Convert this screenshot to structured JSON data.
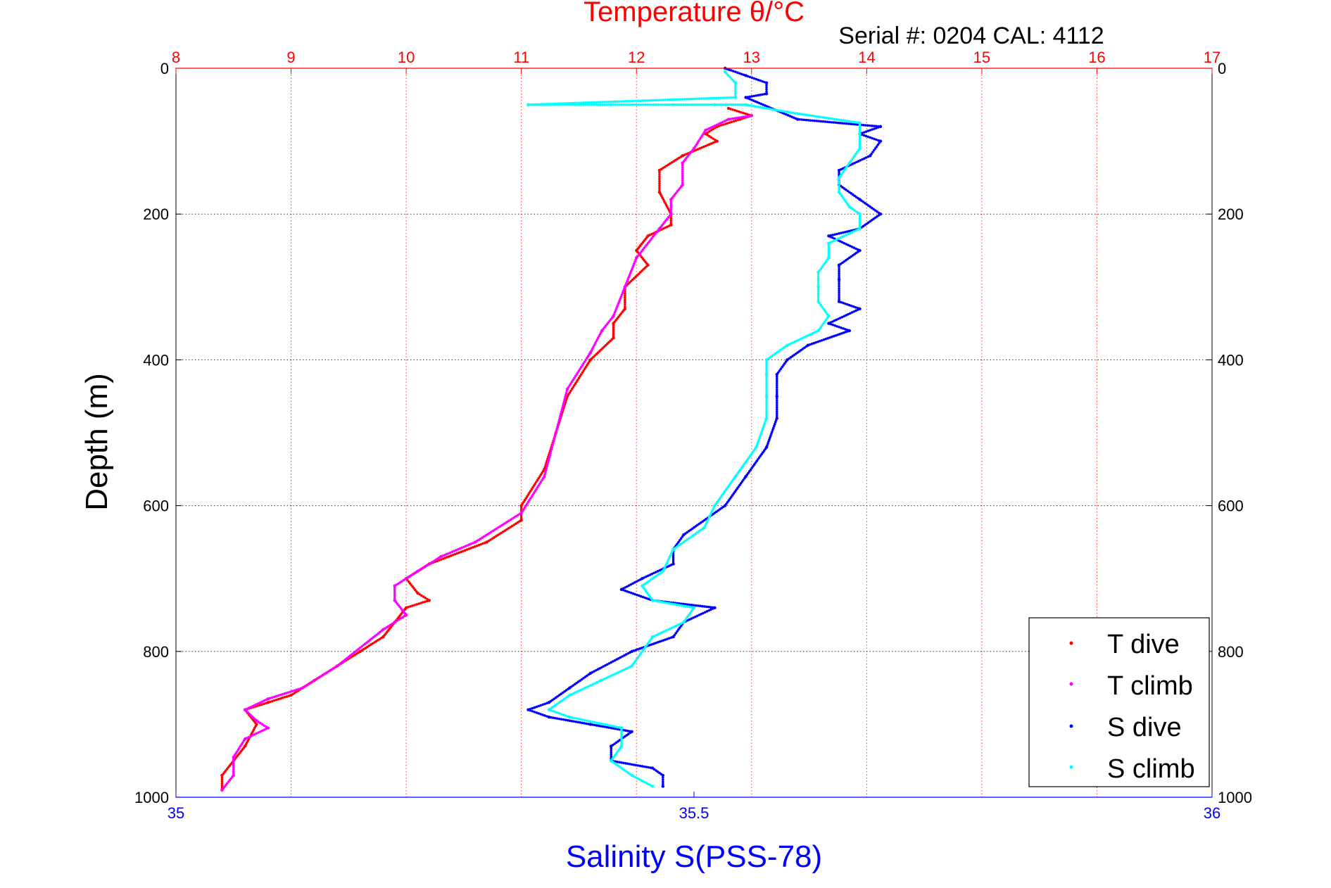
{
  "chart_data": {
    "type": "scatter",
    "title_top": "Temperature θ/°C",
    "subtitle": "Serial #: 0204  CAL: 4112",
    "xlabel_bottom": "Salinity S(PSS-78)",
    "ylabel": "Depth (m)",
    "x_top": {
      "label": "Temperature θ/°C",
      "lim": [
        8,
        17
      ],
      "ticks": [
        "8",
        "9",
        "10",
        "11",
        "12",
        "13",
        "14",
        "15",
        "16",
        "17"
      ],
      "color": "#ff0000"
    },
    "x_bottom": {
      "label": "Salinity S(PSS-78)",
      "lim": [
        35,
        36
      ],
      "ticks": [
        "35",
        "35.5",
        "36"
      ],
      "color": "#0000ff"
    },
    "y": {
      "lim": [
        0,
        1000
      ],
      "reversed": true,
      "ticks": [
        "0",
        "200",
        "400",
        "600",
        "800",
        "1000"
      ]
    },
    "grid": true,
    "legend_position": "bottom-right",
    "series": [
      {
        "name": "T dive",
        "axis": "top",
        "color": "#ff0000",
        "points": [
          [
            12.8,
            55
          ],
          [
            13.0,
            65
          ],
          [
            12.9,
            70
          ],
          [
            12.7,
            80
          ],
          [
            12.6,
            90
          ],
          [
            12.7,
            100
          ],
          [
            12.4,
            120
          ],
          [
            12.2,
            140
          ],
          [
            12.2,
            170
          ],
          [
            12.3,
            200
          ],
          [
            12.3,
            215
          ],
          [
            12.1,
            230
          ],
          [
            12.0,
            250
          ],
          [
            12.1,
            270
          ],
          [
            11.9,
            300
          ],
          [
            11.9,
            330
          ],
          [
            11.8,
            350
          ],
          [
            11.8,
            370
          ],
          [
            11.6,
            400
          ],
          [
            11.4,
            450
          ],
          [
            11.3,
            500
          ],
          [
            11.2,
            550
          ],
          [
            11.0,
            600
          ],
          [
            11.0,
            620
          ],
          [
            10.7,
            650
          ],
          [
            10.2,
            680
          ],
          [
            10.0,
            700
          ],
          [
            10.1,
            720
          ],
          [
            10.2,
            730
          ],
          [
            10.0,
            740
          ],
          [
            9.9,
            760
          ],
          [
            9.8,
            780
          ],
          [
            9.6,
            800
          ],
          [
            9.4,
            820
          ],
          [
            9.2,
            840
          ],
          [
            9.0,
            860
          ],
          [
            8.8,
            870
          ],
          [
            8.6,
            880
          ],
          [
            8.7,
            900
          ],
          [
            8.6,
            930
          ],
          [
            8.5,
            950
          ],
          [
            8.4,
            970
          ],
          [
            8.4,
            990
          ]
        ]
      },
      {
        "name": "T climb",
        "axis": "top",
        "color": "#ff00ff",
        "points": [
          [
            13.0,
            65
          ],
          [
            12.8,
            70
          ],
          [
            12.6,
            85
          ],
          [
            12.5,
            110
          ],
          [
            12.4,
            130
          ],
          [
            12.4,
            160
          ],
          [
            12.3,
            180
          ],
          [
            12.3,
            200
          ],
          [
            12.2,
            220
          ],
          [
            12.0,
            260
          ],
          [
            11.9,
            300
          ],
          [
            11.8,
            340
          ],
          [
            11.7,
            360
          ],
          [
            11.6,
            390
          ],
          [
            11.4,
            440
          ],
          [
            11.3,
            500
          ],
          [
            11.2,
            560
          ],
          [
            11.0,
            610
          ],
          [
            10.6,
            650
          ],
          [
            10.3,
            670
          ],
          [
            10.1,
            690
          ],
          [
            9.9,
            710
          ],
          [
            9.9,
            730
          ],
          [
            10.0,
            750
          ],
          [
            9.8,
            770
          ],
          [
            9.4,
            820
          ],
          [
            9.1,
            850
          ],
          [
            8.8,
            865
          ],
          [
            8.6,
            880
          ],
          [
            8.7,
            895
          ],
          [
            8.8,
            905
          ],
          [
            8.6,
            920
          ],
          [
            8.5,
            945
          ],
          [
            8.5,
            970
          ],
          [
            8.4,
            990
          ]
        ]
      },
      {
        "name": "S dive",
        "axis": "bottom",
        "color": "#0000ff",
        "points": [
          [
            35.53,
            0
          ],
          [
            35.55,
            10
          ],
          [
            35.57,
            20
          ],
          [
            35.57,
            35
          ],
          [
            35.55,
            40
          ],
          [
            35.6,
            70
          ],
          [
            35.68,
            80
          ],
          [
            35.66,
            90
          ],
          [
            35.68,
            100
          ],
          [
            35.67,
            120
          ],
          [
            35.64,
            140
          ],
          [
            35.64,
            160
          ],
          [
            35.66,
            180
          ],
          [
            35.68,
            200
          ],
          [
            35.66,
            220
          ],
          [
            35.63,
            230
          ],
          [
            35.66,
            250
          ],
          [
            35.64,
            270
          ],
          [
            35.64,
            290
          ],
          [
            35.64,
            320
          ],
          [
            35.66,
            330
          ],
          [
            35.63,
            350
          ],
          [
            35.65,
            360
          ],
          [
            35.61,
            380
          ],
          [
            35.59,
            400
          ],
          [
            35.58,
            420
          ],
          [
            35.58,
            450
          ],
          [
            35.58,
            480
          ],
          [
            35.57,
            520
          ],
          [
            35.55,
            560
          ],
          [
            35.53,
            600
          ],
          [
            35.49,
            640
          ],
          [
            35.48,
            660
          ],
          [
            35.48,
            680
          ],
          [
            35.45,
            700
          ],
          [
            35.43,
            715
          ],
          [
            35.46,
            730
          ],
          [
            35.52,
            740
          ],
          [
            35.49,
            760
          ],
          [
            35.48,
            780
          ],
          [
            35.44,
            800
          ],
          [
            35.4,
            830
          ],
          [
            35.38,
            850
          ],
          [
            35.36,
            870
          ],
          [
            35.34,
            880
          ],
          [
            35.36,
            890
          ],
          [
            35.4,
            900
          ],
          [
            35.44,
            910
          ],
          [
            35.42,
            930
          ],
          [
            35.42,
            950
          ],
          [
            35.46,
            960
          ],
          [
            35.47,
            970
          ],
          [
            35.47,
            985
          ]
        ]
      },
      {
        "name": "S climb",
        "axis": "bottom",
        "color": "#00ffff",
        "points": [
          [
            35.53,
            5
          ],
          [
            35.54,
            20
          ],
          [
            35.54,
            40
          ],
          [
            35.34,
            50
          ],
          [
            35.42,
            50
          ],
          [
            35.48,
            50
          ],
          [
            35.52,
            50
          ],
          [
            35.55,
            50
          ],
          [
            35.59,
            60
          ],
          [
            35.66,
            75
          ],
          [
            35.66,
            90
          ],
          [
            35.66,
            110
          ],
          [
            35.65,
            130
          ],
          [
            35.64,
            150
          ],
          [
            35.64,
            170
          ],
          [
            35.65,
            190
          ],
          [
            35.66,
            200
          ],
          [
            35.66,
            220
          ],
          [
            35.63,
            240
          ],
          [
            35.63,
            260
          ],
          [
            35.62,
            280
          ],
          [
            35.62,
            300
          ],
          [
            35.62,
            320
          ],
          [
            35.63,
            340
          ],
          [
            35.62,
            360
          ],
          [
            35.59,
            380
          ],
          [
            35.57,
            400
          ],
          [
            35.57,
            420
          ],
          [
            35.57,
            450
          ],
          [
            35.57,
            480
          ],
          [
            35.56,
            520
          ],
          [
            35.54,
            560
          ],
          [
            35.52,
            600
          ],
          [
            35.51,
            630
          ],
          [
            35.48,
            660
          ],
          [
            35.47,
            690
          ],
          [
            35.45,
            710
          ],
          [
            35.46,
            730
          ],
          [
            35.5,
            740
          ],
          [
            35.49,
            760
          ],
          [
            35.46,
            780
          ],
          [
            35.44,
            820
          ],
          [
            35.41,
            840
          ],
          [
            35.38,
            860
          ],
          [
            35.36,
            880
          ],
          [
            35.38,
            890
          ],
          [
            35.43,
            905
          ],
          [
            35.43,
            930
          ],
          [
            35.42,
            950
          ],
          [
            35.44,
            970
          ],
          [
            35.46,
            985
          ]
        ]
      }
    ]
  },
  "legend": {
    "items": [
      {
        "label": "T dive",
        "color": "#ff0000"
      },
      {
        "label": "T climb",
        "color": "#ff00ff"
      },
      {
        "label": "S dive",
        "color": "#0000ff"
      },
      {
        "label": "S climb",
        "color": "#00ffff"
      }
    ]
  }
}
